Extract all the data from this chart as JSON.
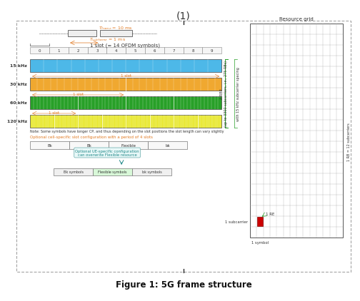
{
  "title_top": "(1)",
  "title_bottom": "Figure 1: 5G frame structure",
  "background_color": "#ffffff",
  "border_color": "#aaaaaa",
  "scs_labels": [
    "15 kHz",
    "30 kHz",
    "60 kHz",
    "120 kHz"
  ],
  "bar_colors": [
    "#4db8e8",
    "#f0a830",
    "#28a028",
    "#e8e830"
  ],
  "re_color": "#cc0000",
  "grid_line_color": "#aaaaaa",
  "text_color_orange": "#e07820",
  "text_color_teal": "#208888",
  "text_color_dark": "#333333",
  "text_color_green": "#28a028"
}
